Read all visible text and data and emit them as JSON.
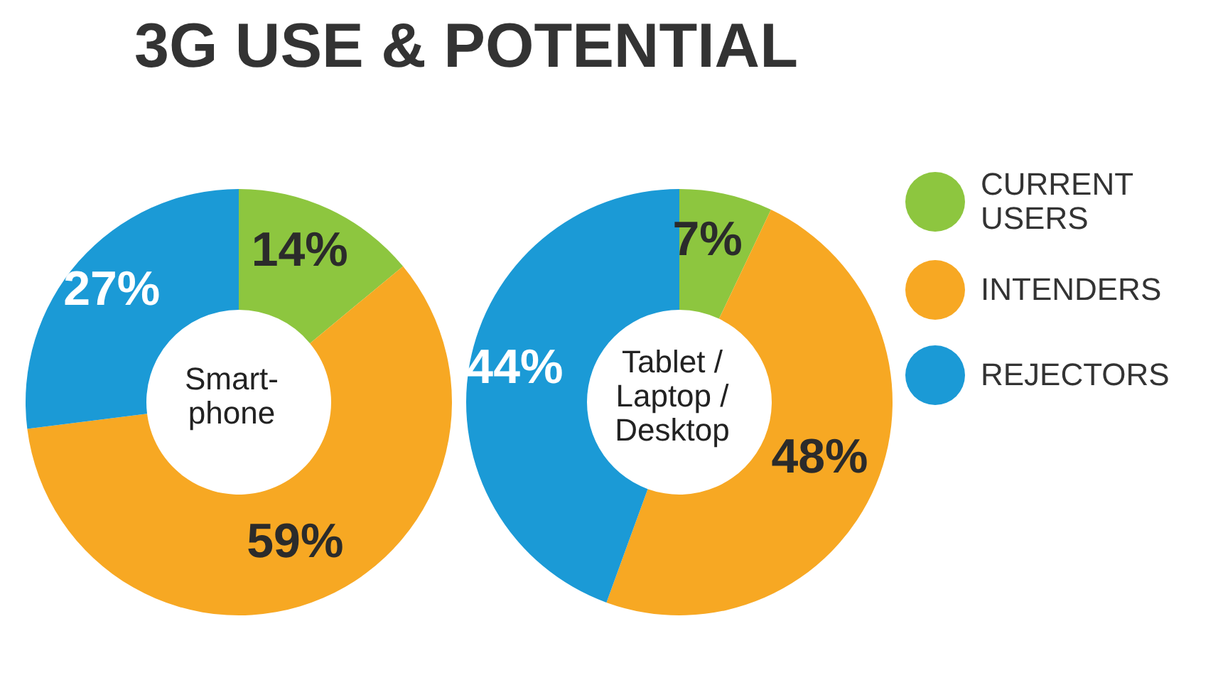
{
  "chart_data": [
    {
      "type": "donut",
      "title": "3G USE & POTENTIAL",
      "categories": [
        null,
        null,
        null
      ],
      "values": [
        14,
        59,
        27
      ],
      "value_labels": [
        "14%",
        "59%",
        "27%"
      ],
      "colors": [
        "#8dc63f",
        "#f7a823",
        "#1b9ad6"
      ],
      "annotations": [
        "Smart-\nphone"
      ]
    },
    {
      "type": "donut",
      "categories": [
        "CURRENT USERS",
        "INTENDERS",
        "REJECTORS"
      ],
      "values": [
        7,
        48,
        44
      ],
      "value_labels": [
        "7%",
        "48%",
        "44%"
      ],
      "colors": [
        "#8dc63f",
        "#f7a823",
        "#1b9ad6"
      ],
      "annotations": [
        "Tablet /\nLaptop /\nDesktop"
      ],
      "legend": "right"
    }
  ]
}
